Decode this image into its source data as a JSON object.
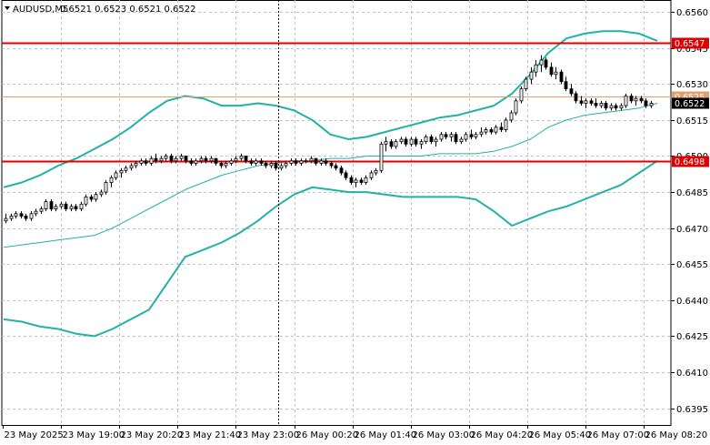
{
  "header": {
    "symbol_timeframe": "AUDUSD,M5",
    "ohlc": "0.6521 0.6523 0.6521 0.6522"
  },
  "colors": {
    "background": "#ffffff",
    "grid": "#c0c0c0",
    "support_resistance": "#e00000",
    "last_price_line": "#e0a070",
    "bollinger": "#20b2aa",
    "candle": "#000000"
  },
  "chart_data": {
    "type": "candlestick",
    "symbol": "AUDUSD",
    "timeframe": "M5",
    "ylim": [
      0.6388,
      0.6565
    ],
    "y_ticks": [
      "0.6560",
      "0.6545",
      "0.6530",
      "0.6515",
      "0.6500",
      "0.6485",
      "0.6470",
      "0.6455",
      "0.6440",
      "0.6425",
      "0.6410",
      "0.6395"
    ],
    "x_ticks": [
      "23 May 2025",
      "23 May 19:00",
      "23 May 20:20",
      "23 May 21:40",
      "23 May 23:00",
      "26 May 00:20",
      "26 May 01:40",
      "26 May 03:00",
      "26 May 04:20",
      "26 May 05:40",
      "26 May 07:00",
      "26 May 08:20"
    ],
    "grid": true,
    "session_separator_after": "23 May 23:00",
    "levels": [
      {
        "price": 0.6547,
        "label": "0.6547",
        "kind": "resistance"
      },
      {
        "price": 0.6498,
        "label": "0.6498",
        "kind": "support"
      },
      {
        "price": 0.6525,
        "label": "0.6525",
        "kind": "reference"
      },
      {
        "price": 0.6522,
        "label": "0.6522",
        "kind": "last_price"
      }
    ],
    "candles": [
      [
        0.6473,
        0.6476,
        0.6472,
        0.6474
      ],
      [
        0.6474,
        0.6476,
        0.6473,
        0.6475
      ],
      [
        0.6475,
        0.6477,
        0.6474,
        0.6476
      ],
      [
        0.6476,
        0.6477,
        0.6474,
        0.6475
      ],
      [
        0.6475,
        0.6476,
        0.6473,
        0.6474
      ],
      [
        0.6474,
        0.6477,
        0.6473,
        0.6476
      ],
      [
        0.6476,
        0.6478,
        0.6475,
        0.6477
      ],
      [
        0.6477,
        0.6479,
        0.6476,
        0.6478
      ],
      [
        0.6478,
        0.6482,
        0.6477,
        0.6481
      ],
      [
        0.6481,
        0.6482,
        0.6477,
        0.6478
      ],
      [
        0.6478,
        0.648,
        0.6477,
        0.6479
      ],
      [
        0.6479,
        0.6481,
        0.6478,
        0.648
      ],
      [
        0.648,
        0.6481,
        0.6477,
        0.6478
      ],
      [
        0.6478,
        0.648,
        0.6477,
        0.6479
      ],
      [
        0.6479,
        0.648,
        0.6477,
        0.6478
      ],
      [
        0.6478,
        0.6481,
        0.6477,
        0.648
      ],
      [
        0.648,
        0.6484,
        0.6479,
        0.6483
      ],
      [
        0.6483,
        0.6484,
        0.6481,
        0.6482
      ],
      [
        0.6482,
        0.6485,
        0.6481,
        0.6484
      ],
      [
        0.6484,
        0.6486,
        0.6483,
        0.6485
      ],
      [
        0.6485,
        0.649,
        0.6484,
        0.6489
      ],
      [
        0.6489,
        0.6492,
        0.6487,
        0.6491
      ],
      [
        0.6491,
        0.6494,
        0.649,
        0.6493
      ],
      [
        0.6493,
        0.6495,
        0.6491,
        0.6494
      ],
      [
        0.6494,
        0.6496,
        0.6493,
        0.6495
      ],
      [
        0.6495,
        0.6497,
        0.6494,
        0.6496
      ],
      [
        0.6496,
        0.6498,
        0.6495,
        0.6497
      ],
      [
        0.6497,
        0.6499,
        0.6496,
        0.6498
      ],
      [
        0.6498,
        0.6499,
        0.6496,
        0.6497
      ],
      [
        0.6497,
        0.65,
        0.6496,
        0.6499
      ],
      [
        0.6499,
        0.6501,
        0.6497,
        0.6498
      ],
      [
        0.6498,
        0.65,
        0.6497,
        0.6499
      ],
      [
        0.6499,
        0.6501,
        0.6498,
        0.65
      ],
      [
        0.65,
        0.6501,
        0.6497,
        0.6498
      ],
      [
        0.6498,
        0.65,
        0.6497,
        0.6499
      ],
      [
        0.6499,
        0.6501,
        0.6498,
        0.65
      ],
      [
        0.65,
        0.65,
        0.6497,
        0.6498
      ],
      [
        0.6498,
        0.6499,
        0.6496,
        0.6497
      ],
      [
        0.6497,
        0.6499,
        0.6496,
        0.6498
      ],
      [
        0.6498,
        0.65,
        0.6497,
        0.6499
      ],
      [
        0.6499,
        0.65,
        0.6497,
        0.6498
      ],
      [
        0.6498,
        0.65,
        0.6497,
        0.6499
      ],
      [
        0.6499,
        0.6499,
        0.6496,
        0.6497
      ],
      [
        0.6497,
        0.6498,
        0.6495,
        0.6496
      ],
      [
        0.6496,
        0.6498,
        0.6495,
        0.6497
      ],
      [
        0.6497,
        0.6499,
        0.6496,
        0.6498
      ],
      [
        0.6498,
        0.65,
        0.6497,
        0.6499
      ],
      [
        0.6499,
        0.6501,
        0.6498,
        0.65
      ],
      [
        0.65,
        0.65,
        0.6497,
        0.6498
      ],
      [
        0.6498,
        0.6499,
        0.6496,
        0.6497
      ],
      [
        0.6497,
        0.6499,
        0.6496,
        0.6498
      ],
      [
        0.6498,
        0.6499,
        0.6496,
        0.6497
      ],
      [
        0.6497,
        0.6498,
        0.6495,
        0.6496
      ],
      [
        0.6496,
        0.6498,
        0.6495,
        0.6497
      ],
      [
        0.6497,
        0.6498,
        0.6494,
        0.6495
      ],
      [
        0.6495,
        0.6497,
        0.6494,
        0.6496
      ],
      [
        0.6496,
        0.6498,
        0.6495,
        0.6497
      ],
      [
        0.6497,
        0.6499,
        0.6496,
        0.6498
      ],
      [
        0.6498,
        0.6499,
        0.6496,
        0.6497
      ],
      [
        0.6497,
        0.6499,
        0.6496,
        0.6498
      ],
      [
        0.6498,
        0.6499,
        0.6497,
        0.6498
      ],
      [
        0.6498,
        0.65,
        0.6497,
        0.6499
      ],
      [
        0.6499,
        0.6499,
        0.6496,
        0.6497
      ],
      [
        0.6497,
        0.6499,
        0.6496,
        0.6498
      ],
      [
        0.6498,
        0.6499,
        0.6496,
        0.6497
      ],
      [
        0.6497,
        0.6498,
        0.6495,
        0.6496
      ],
      [
        0.6496,
        0.6497,
        0.6494,
        0.6495
      ],
      [
        0.6495,
        0.6496,
        0.6492,
        0.6493
      ],
      [
        0.6493,
        0.6494,
        0.649,
        0.6491
      ],
      [
        0.6491,
        0.6492,
        0.6488,
        0.6489
      ],
      [
        0.6489,
        0.6491,
        0.6487,
        0.649
      ],
      [
        0.649,
        0.6491,
        0.6488,
        0.6489
      ],
      [
        0.6489,
        0.6492,
        0.6488,
        0.6491
      ],
      [
        0.6491,
        0.6494,
        0.649,
        0.6493
      ],
      [
        0.6493,
        0.6495,
        0.6492,
        0.6494
      ],
      [
        0.6494,
        0.6506,
        0.6493,
        0.6505
      ],
      [
        0.6505,
        0.6508,
        0.6502,
        0.6506
      ],
      [
        0.6506,
        0.6507,
        0.6503,
        0.6504
      ],
      [
        0.6504,
        0.6507,
        0.6503,
        0.6506
      ],
      [
        0.6506,
        0.6508,
        0.6505,
        0.6507
      ],
      [
        0.6507,
        0.6508,
        0.6504,
        0.6505
      ],
      [
        0.6505,
        0.6508,
        0.6504,
        0.6507
      ],
      [
        0.6507,
        0.6508,
        0.6504,
        0.6505
      ],
      [
        0.6505,
        0.6507,
        0.6503,
        0.6506
      ],
      [
        0.6506,
        0.6509,
        0.6505,
        0.6508
      ],
      [
        0.6508,
        0.6509,
        0.6505,
        0.6506
      ],
      [
        0.6506,
        0.6508,
        0.6504,
        0.6507
      ],
      [
        0.6507,
        0.651,
        0.6506,
        0.6509
      ],
      [
        0.6509,
        0.651,
        0.6507,
        0.6508
      ],
      [
        0.6508,
        0.651,
        0.6506,
        0.6509
      ],
      [
        0.6509,
        0.651,
        0.6505,
        0.6506
      ],
      [
        0.6506,
        0.6508,
        0.6505,
        0.6507
      ],
      [
        0.6507,
        0.651,
        0.6506,
        0.6509
      ],
      [
        0.6509,
        0.6511,
        0.6507,
        0.6508
      ],
      [
        0.6508,
        0.651,
        0.6507,
        0.6509
      ],
      [
        0.6509,
        0.6512,
        0.6508,
        0.651
      ],
      [
        0.651,
        0.6512,
        0.6509,
        0.6511
      ],
      [
        0.6511,
        0.6512,
        0.6509,
        0.651
      ],
      [
        0.651,
        0.6513,
        0.6509,
        0.6512
      ],
      [
        0.6512,
        0.6514,
        0.651,
        0.6511
      ],
      [
        0.6511,
        0.6516,
        0.651,
        0.6515
      ],
      [
        0.6515,
        0.6519,
        0.6514,
        0.6518
      ],
      [
        0.6518,
        0.6524,
        0.6517,
        0.6523
      ],
      [
        0.6523,
        0.6529,
        0.6522,
        0.6528
      ],
      [
        0.6528,
        0.6533,
        0.6527,
        0.6532
      ],
      [
        0.6532,
        0.6537,
        0.653,
        0.6535
      ],
      [
        0.6535,
        0.654,
        0.6533,
        0.6538
      ],
      [
        0.6538,
        0.6542,
        0.6535,
        0.654
      ],
      [
        0.654,
        0.6541,
        0.6536,
        0.6537
      ],
      [
        0.6537,
        0.6539,
        0.6533,
        0.6534
      ],
      [
        0.6534,
        0.6537,
        0.6532,
        0.6535
      ],
      [
        0.6535,
        0.6536,
        0.653,
        0.6531
      ],
      [
        0.6531,
        0.6533,
        0.6527,
        0.6528
      ],
      [
        0.6528,
        0.653,
        0.6525,
        0.6526
      ],
      [
        0.6526,
        0.6527,
        0.6522,
        0.6523
      ],
      [
        0.6523,
        0.6525,
        0.6521,
        0.6522
      ],
      [
        0.6522,
        0.6524,
        0.652,
        0.6523
      ],
      [
        0.6523,
        0.6524,
        0.6521,
        0.6522
      ],
      [
        0.6522,
        0.6524,
        0.652,
        0.6521
      ],
      [
        0.6521,
        0.6523,
        0.652,
        0.6522
      ],
      [
        0.6522,
        0.6523,
        0.6519,
        0.652
      ],
      [
        0.652,
        0.6522,
        0.6519,
        0.6521
      ],
      [
        0.6521,
        0.6522,
        0.6519,
        0.652
      ],
      [
        0.652,
        0.6522,
        0.6519,
        0.6521
      ],
      [
        0.6521,
        0.6526,
        0.652,
        0.6525
      ],
      [
        0.6525,
        0.6526,
        0.6522,
        0.6523
      ],
      [
        0.6523,
        0.6525,
        0.6521,
        0.6524
      ],
      [
        0.6524,
        0.6525,
        0.6522,
        0.6523
      ],
      [
        0.6523,
        0.6524,
        0.652,
        0.6521
      ],
      [
        0.6521,
        0.6523,
        0.652,
        0.6522
      ]
    ],
    "series": [
      {
        "name": "Bollinger upper",
        "values": [
          0.6487,
          0.6489,
          0.6492,
          0.6496,
          0.6499,
          0.6503,
          0.6507,
          0.6512,
          0.6518,
          0.6523,
          0.6525,
          0.6524,
          0.6521,
          0.6521,
          0.6522,
          0.6521,
          0.6519,
          0.6515,
          0.6509,
          0.6507,
          0.6508,
          0.651,
          0.6512,
          0.6514,
          0.6516,
          0.6517,
          0.6519,
          0.6521,
          0.6526,
          0.6534,
          0.6543,
          0.6549,
          0.6551,
          0.6552,
          0.6552,
          0.6551,
          0.6548
        ]
      },
      {
        "name": "Bollinger middle",
        "values": [
          0.6462,
          0.6463,
          0.6464,
          0.6465,
          0.6466,
          0.6467,
          0.647,
          0.6474,
          0.6478,
          0.6482,
          0.6486,
          0.6489,
          0.6492,
          0.6494,
          0.6496,
          0.6497,
          0.6498,
          0.6498,
          0.6499,
          0.6499,
          0.65,
          0.65,
          0.65,
          0.65,
          0.6501,
          0.6501,
          0.6501,
          0.6502,
          0.6504,
          0.6507,
          0.6512,
          0.6515,
          0.6517,
          0.6518,
          0.6519,
          0.652,
          0.6522
        ]
      },
      {
        "name": "Bollinger lower",
        "values": [
          0.6432,
          0.6431,
          0.6429,
          0.6428,
          0.6426,
          0.6425,
          0.6428,
          0.6432,
          0.6436,
          0.6447,
          0.6458,
          0.6461,
          0.6464,
          0.6468,
          0.6473,
          0.6479,
          0.6484,
          0.6487,
          0.6486,
          0.6485,
          0.6485,
          0.6484,
          0.6483,
          0.6483,
          0.6483,
          0.6483,
          0.6482,
          0.6477,
          0.6471,
          0.6474,
          0.6477,
          0.6479,
          0.6482,
          0.6485,
          0.6488,
          0.6493,
          0.6498
        ]
      }
    ]
  }
}
